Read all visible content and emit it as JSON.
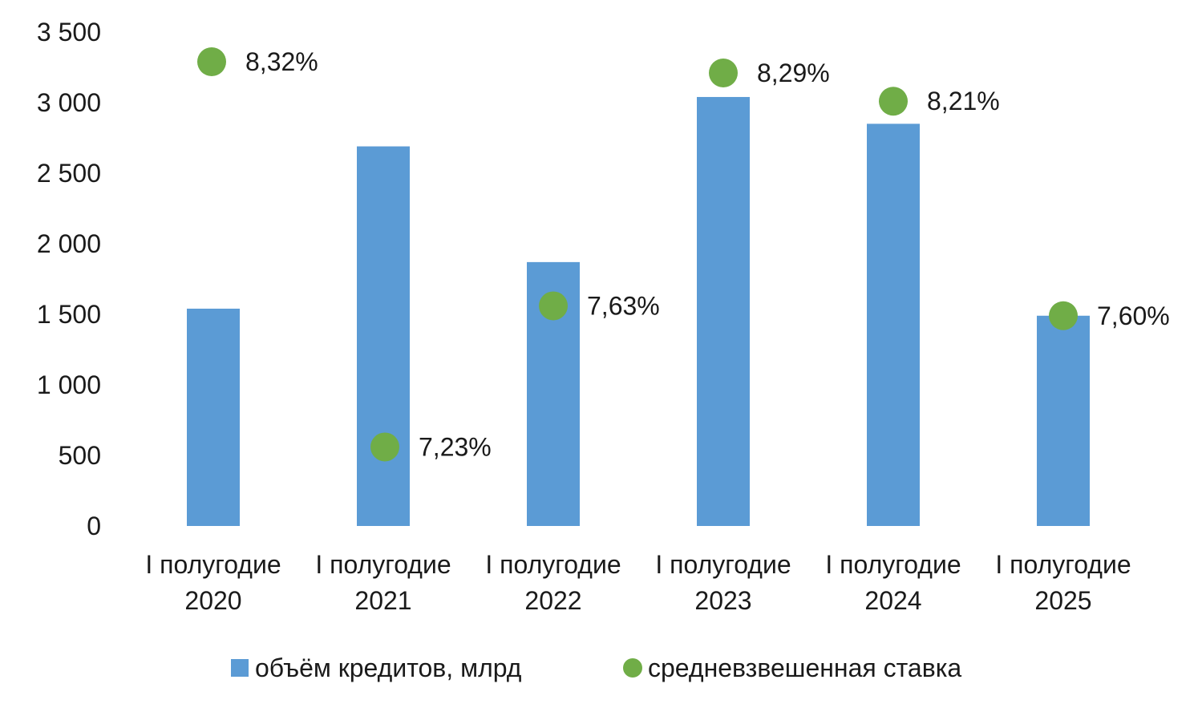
{
  "chart_data": {
    "type": "bar",
    "categories": [
      [
        "I полугодие",
        "2020"
      ],
      [
        "I полугодие",
        "2021"
      ],
      [
        "I полугодие",
        "2022"
      ],
      [
        "I полугодие",
        "2023"
      ],
      [
        "I полугодие",
        "2024"
      ],
      [
        "I полугодие",
        "2025"
      ]
    ],
    "series": [
      {
        "name": "объём кредитов, млрд",
        "kind": "bar",
        "color": "#5b9bd5",
        "values": [
          1540,
          2690,
          1870,
          3040,
          2850,
          1490
        ]
      },
      {
        "name": "средневзвешенная ставка",
        "kind": "marker",
        "color": "#70ad47",
        "values": [
          3290,
          560,
          1560,
          3210,
          3010,
          1490
        ],
        "labels": [
          "8,32%",
          "7,23%",
          "7,63%",
          "8,29%",
          "8,21%",
          "7,60%"
        ]
      }
    ],
    "y_ticks": [
      {
        "value": 0,
        "label": "0"
      },
      {
        "value": 500,
        "label": "500"
      },
      {
        "value": 1000,
        "label": "1 000"
      },
      {
        "value": 1500,
        "label": "1 500"
      },
      {
        "value": 2000,
        "label": "2 000"
      },
      {
        "value": 2500,
        "label": "2 500"
      },
      {
        "value": 3000,
        "label": "3 000"
      },
      {
        "value": 3500,
        "label": "3 500"
      }
    ],
    "ylim": [
      0,
      3500
    ],
    "grid": false,
    "legend_position": "bottom"
  }
}
